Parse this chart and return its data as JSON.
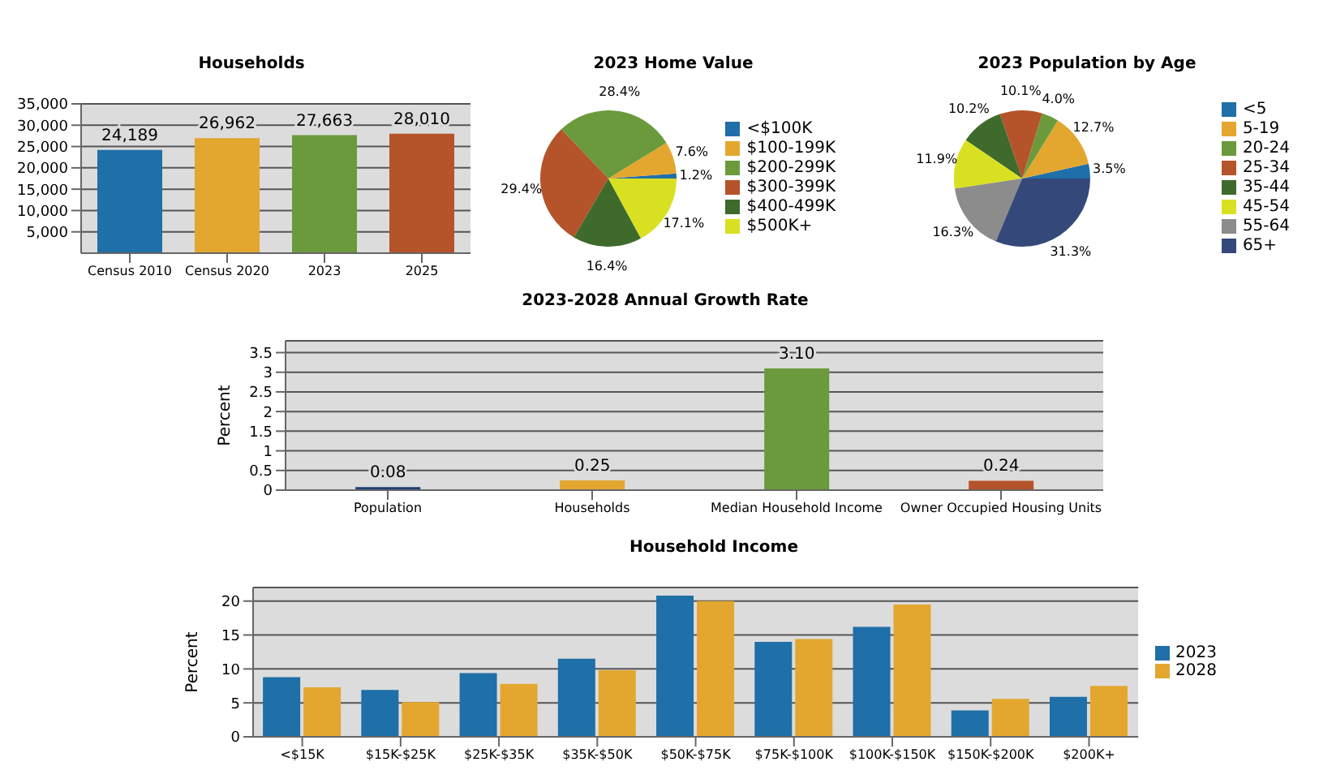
{
  "chart_data": [
    {
      "type": "bar",
      "title": "Households",
      "categories": [
        "Census 2010",
        "Census 2020",
        "2023",
        "2025"
      ],
      "values": [
        24189,
        26962,
        27663,
        28010
      ],
      "colors": [
        "#1f6fa8",
        "#e3a72f",
        "#6b9a3c",
        "#b5532a"
      ],
      "value_labels": [
        "24,189",
        "26,962",
        "27,663",
        "28,010"
      ],
      "ylim": [
        0,
        35000
      ],
      "yticks": [
        {
          "value": 5000,
          "label": "5,000"
        },
        {
          "value": 10000,
          "label": "10,000"
        },
        {
          "value": 15000,
          "label": "15,000"
        },
        {
          "value": 20000,
          "label": "20,000"
        },
        {
          "value": 25000,
          "label": "25,000"
        },
        {
          "value": 30000,
          "label": "30,000"
        },
        {
          "value": 35000,
          "label": "35,000"
        }
      ],
      "grid": "y"
    },
    {
      "type": "pie",
      "title": "2023 Home Value",
      "categories": [
        "<$100K",
        "$100-199K",
        "$200-299K",
        "$300-399K",
        "$400-499K",
        "$500K+"
      ],
      "values": [
        1.2,
        7.6,
        28.4,
        29.4,
        16.4,
        17.1
      ],
      "colors": [
        "#1f6fa8",
        "#e3a72f",
        "#6b9a3c",
        "#b5532a",
        "#3e6b2c",
        "#d9e021"
      ],
      "value_labels": [
        "1.2%",
        "7.6%",
        "28.4%",
        "29.4%",
        "16.4%",
        "17.1%"
      ],
      "legend": "right"
    },
    {
      "type": "pie",
      "title": "2023 Population by Age",
      "categories": [
        "<5",
        "5-19",
        "20-24",
        "25-34",
        "35-44",
        "45-54",
        "55-64",
        "65+"
      ],
      "values": [
        3.5,
        12.7,
        4.0,
        10.1,
        10.2,
        11.9,
        16.3,
        31.3
      ],
      "colors": [
        "#1f6fa8",
        "#e3a72f",
        "#6b9a3c",
        "#b5532a",
        "#3e6b2c",
        "#d9e021",
        "#8c8c8c",
        "#34497a"
      ],
      "value_labels": [
        "3.5%",
        "12.7%",
        "4.0%",
        "10.1%",
        "10.2%",
        "11.9%",
        "16.3%",
        "31.3%"
      ],
      "legend": "right"
    },
    {
      "type": "bar",
      "title": "2023-2028 Annual Growth Rate",
      "ylabel": "Percent",
      "categories": [
        "Population",
        "Households",
        "Median Household Income",
        "Owner Occupied Housing Units"
      ],
      "values": [
        0.08,
        0.25,
        3.1,
        0.24
      ],
      "colors": [
        "#1f3f7a",
        "#e3a72f",
        "#6b9a3c",
        "#b5532a"
      ],
      "value_labels": [
        "0.08",
        "0.25",
        "3.10",
        "0.24"
      ],
      "ylim": [
        0,
        3.8
      ],
      "yticks": [
        0,
        0.5,
        1,
        1.5,
        2,
        2.5,
        3,
        3.5
      ],
      "grid": "y"
    },
    {
      "type": "bar",
      "title": "Household Income",
      "ylabel": "Percent",
      "categories": [
        "<$15K",
        "$15K-$25K",
        "$25K-$35K",
        "$35K-$50K",
        "$50K-$75K",
        "$75K-$100K",
        "$100K-$150K",
        "$150K-$200K",
        "$200K+"
      ],
      "series": [
        {
          "name": "2023",
          "color": "#1f6fa8",
          "values": [
            8.8,
            6.9,
            9.4,
            11.5,
            20.8,
            14.0,
            16.2,
            3.9,
            5.9
          ]
        },
        {
          "name": "2028",
          "color": "#e3a72f",
          "values": [
            7.3,
            5.1,
            7.8,
            9.8,
            20.0,
            14.4,
            19.5,
            5.6,
            7.5
          ]
        }
      ],
      "ylim": [
        0,
        22
      ],
      "yticks": [
        0,
        5,
        10,
        15,
        20
      ],
      "grid": "y",
      "legend": "right"
    }
  ]
}
